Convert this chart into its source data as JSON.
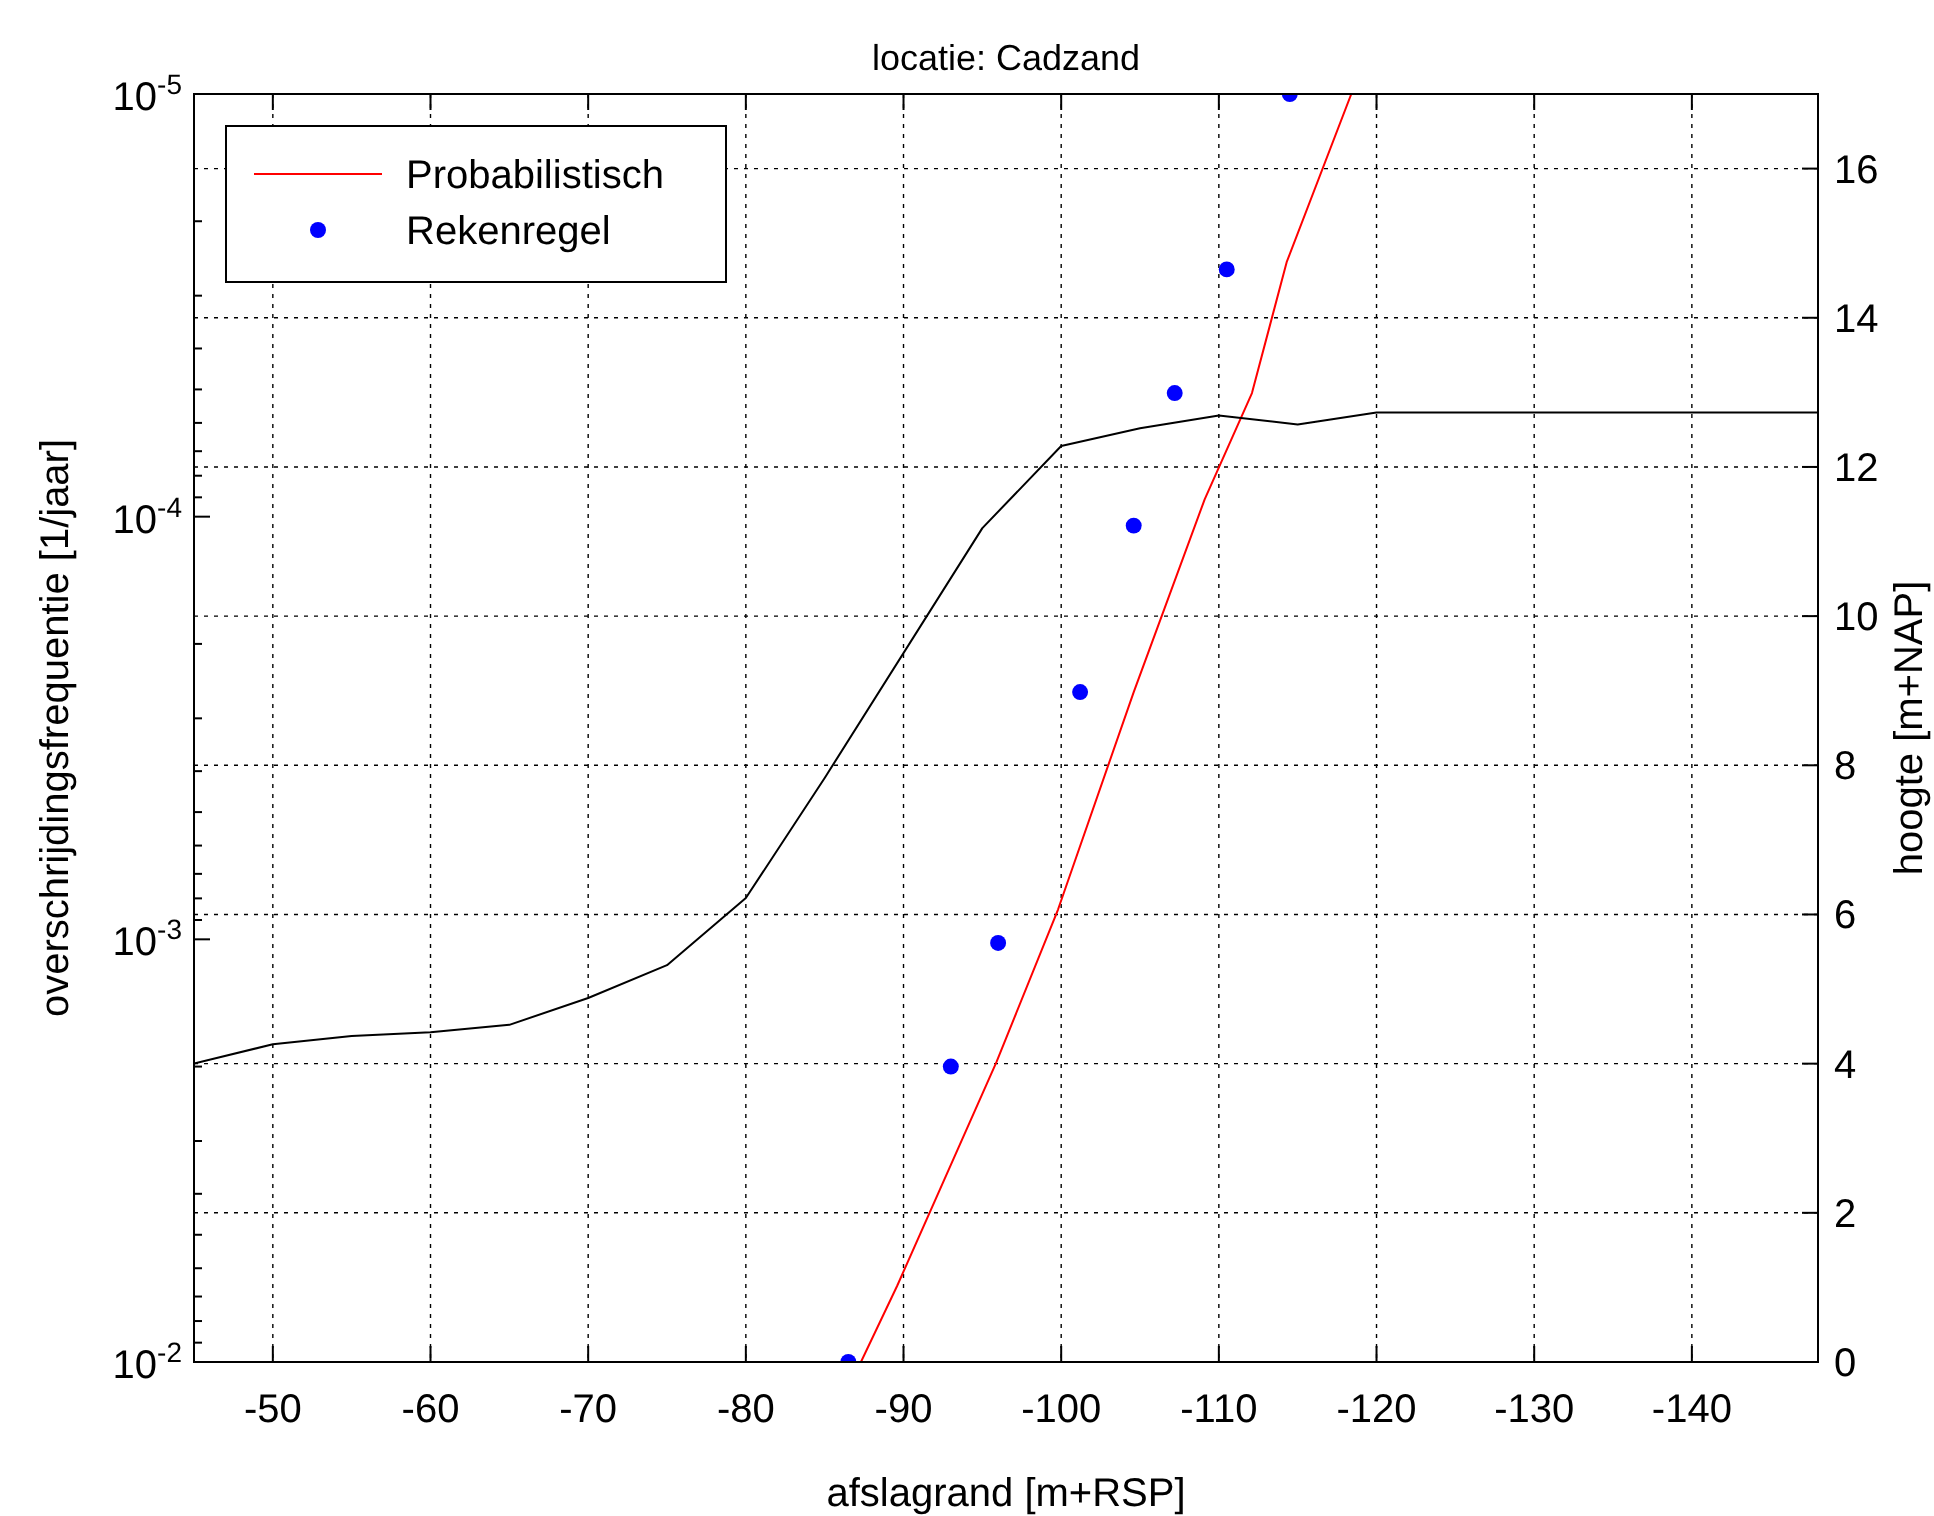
{
  "chart_data": {
    "type": "line",
    "title": "locatie: Cadzand",
    "xlabel": "afslagrand [m+RSP]",
    "ylabel": "overschrijdingsfrequentie [1/jaar]",
    "y2label": "hoogte [m+NAP]",
    "xlim": [
      -45,
      -148
    ],
    "xticks": [
      -50,
      -60,
      -70,
      -80,
      -90,
      -100,
      -110,
      -120,
      -130,
      -140
    ],
    "log": "y",
    "ylim": [
      0.01,
      1e-05
    ],
    "yticks": [
      {
        "value": 0.01,
        "label": "10$^{-2}$"
      },
      {
        "value": 0.001,
        "label": "10$^{-3}$"
      },
      {
        "value": 0.0001,
        "label": "10$^{-4}$"
      },
      {
        "value": 1e-05,
        "label": "10$^{-5}$"
      },
      {
        "value": 0.009,
        "label": null
      },
      {
        "value": 0.008,
        "label": null
      },
      {
        "value": 0.007,
        "label": null
      },
      {
        "value": 0.006,
        "label": null
      },
      {
        "value": 0.005,
        "label": null
      },
      {
        "value": 0.004,
        "label": null
      },
      {
        "value": 0.003,
        "label": null
      },
      {
        "value": 0.002,
        "label": null
      },
      {
        "value": 0.0009,
        "label": null
      },
      {
        "value": 0.0008,
        "label": null
      },
      {
        "value": 0.0007,
        "label": null
      },
      {
        "value": 0.0006,
        "label": null
      },
      {
        "value": 0.0005,
        "label": null
      },
      {
        "value": 0.0004,
        "label": null
      },
      {
        "value": 0.0003,
        "label": null
      },
      {
        "value": 0.0002,
        "label": null
      },
      {
        "value": 9e-05,
        "label": null
      },
      {
        "value": 8e-05,
        "label": null
      },
      {
        "value": 7e-05,
        "label": null
      },
      {
        "value": 6e-05,
        "label": null
      },
      {
        "value": 5e-05,
        "label": null
      },
      {
        "value": 4e-05,
        "label": null
      },
      {
        "value": 3e-05,
        "label": null
      },
      {
        "value": 2e-05,
        "label": null
      }
    ],
    "y2lim": [
      0,
      17
    ],
    "y2ticks": [
      0,
      2,
      4,
      6,
      8,
      10,
      12,
      14,
      16
    ],
    "grid": true,
    "legend": "top left",
    "series": [
      {
        "name": "Probabilistisch",
        "color": "#ff0000",
        "marker": "none",
        "x": [
          -87.3,
          -89.6,
          -95.9,
          -99.8,
          -104.6,
          -109.1,
          -112.1,
          -114.3,
          -118.4
        ],
        "values": [
          0.01,
          0.0066,
          0.00195,
          0.00085,
          0.00026,
          9.1e-05,
          5.1e-05,
          2.5e-05,
          1e-05
        ]
      },
      {
        "name": "Rekenregel",
        "type": "scatter",
        "color": "#0000ff",
        "marker": "circle",
        "x": [
          -86.5,
          -93.0,
          -96.0,
          -101.2,
          -104.6,
          -107.2,
          -110.5,
          -114.5
        ],
        "values": [
          0.01,
          0.002,
          0.00102,
          0.00026,
          0.000105,
          5.1e-05,
          2.6e-05,
          1e-05
        ]
      },
      {
        "axis": "y2",
        "color": "#000000",
        "marker": "none",
        "x": [
          -45,
          -50,
          -55,
          -60,
          -65,
          -70,
          -75,
          -80,
          -85,
          -95,
          -100,
          -105,
          -110,
          -115,
          -120,
          -148
        ],
        "values": [
          4.0,
          4.26,
          4.37,
          4.42,
          4.52,
          4.88,
          5.32,
          6.22,
          7.83,
          11.18,
          12.28,
          12.52,
          12.69,
          12.57,
          12.73,
          12.73
        ]
      }
    ]
  }
}
